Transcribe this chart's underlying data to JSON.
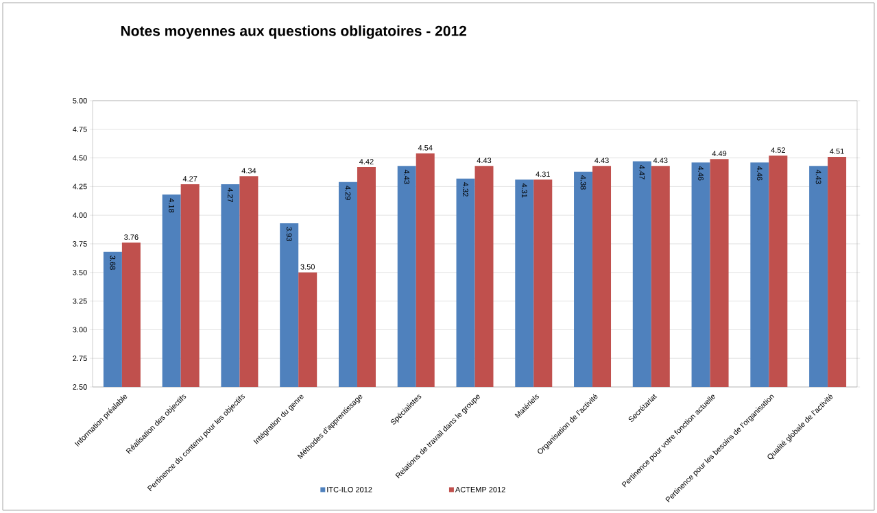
{
  "chart_data": {
    "type": "bar",
    "title": "Notes moyennes aux questions obligatoires - 2012",
    "categories": [
      "Information préalable",
      "Réalisation des objectifs",
      "Pertinence du contenu pour les objectifs",
      "Intégration du genre",
      "Méthodes d’apprentissage",
      "Spécialistes",
      "Relations de travail dans le groupe",
      "Matériels",
      "Organisation de l’activité",
      "Secrétariat",
      "Pertinence pour votre fonction actuelle",
      "Pertinence pour les besoins de l’organisation",
      "Qualité globale de l’activité"
    ],
    "series": [
      {
        "name": "ITC-ILO 2012",
        "color": "#4f81bd",
        "values": [
          3.68,
          4.18,
          4.27,
          3.93,
          4.29,
          4.43,
          4.32,
          4.31,
          4.38,
          4.47,
          4.46,
          4.46,
          4.43
        ],
        "value_labels": [
          "3.68",
          "4.18",
          "4.27",
          "3.93",
          "4.29",
          "4.43",
          "4.32",
          "4.31",
          "4.38",
          "4.47",
          "4.46",
          "4.46",
          "4.43"
        ]
      },
      {
        "name": "ACTEMP 2012",
        "color": "#c0504d",
        "values": [
          3.76,
          4.27,
          4.34,
          3.5,
          4.42,
          4.54,
          4.43,
          4.31,
          4.43,
          4.43,
          4.49,
          4.52,
          4.51
        ],
        "value_labels": [
          "3.76",
          "4.27",
          "4.34",
          "3.50",
          "4.42",
          "4.54",
          "4.43",
          "4.31",
          "4.43",
          "4.43",
          "4.49",
          "4.52",
          "4.51"
        ]
      }
    ],
    "ylim": [
      2.5,
      5.0
    ],
    "yticks": [
      {
        "value": 2.5,
        "label": "2.50"
      },
      {
        "value": 2.75,
        "label": "2.75"
      },
      {
        "value": 3.0,
        "label": "3.00"
      },
      {
        "value": 3.25,
        "label": "3.25"
      },
      {
        "value": 3.5,
        "label": "3.50"
      },
      {
        "value": 3.75,
        "label": "3.75"
      },
      {
        "value": 4.0,
        "label": "4.00"
      },
      {
        "value": 4.25,
        "label": "4.25"
      },
      {
        "value": 4.5,
        "label": "4.50"
      },
      {
        "value": 4.75,
        "label": "4.75"
      },
      {
        "value": 5.0,
        "label": "5.00"
      }
    ],
    "grid": "y",
    "legend": "bottom"
  }
}
